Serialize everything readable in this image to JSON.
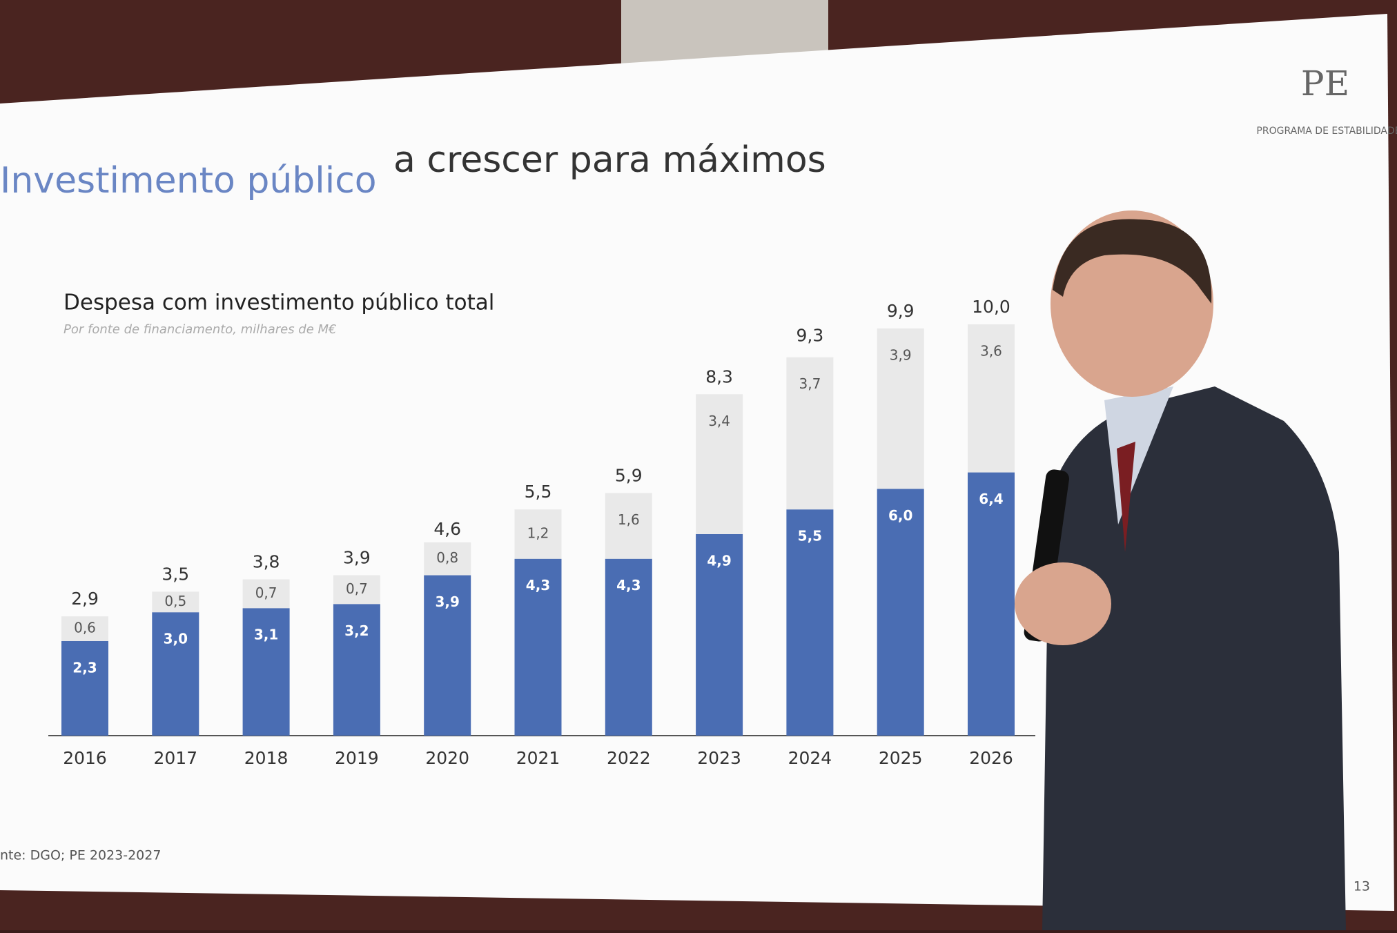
{
  "slide": {
    "title_lead": "Investimento público",
    "title_rest": "a crescer para máximos",
    "logo": "PE",
    "logo_caption": "PROGRAMA DE ESTABILIDADE",
    "source": "nte: DGO; PE 2023-2027",
    "page_number": "13"
  },
  "chart_data": {
    "type": "stacked-bar",
    "title": "Despesa com investimento público total",
    "subtitle": "Por fonte de financiamento, milhares de M€",
    "categories": [
      "2016",
      "2017",
      "2018",
      "2019",
      "2020",
      "2021",
      "2022",
      "2023",
      "2024",
      "2025",
      "2026"
    ],
    "series": [
      {
        "color": "#4a6db3",
        "values": [
          2.3,
          3.0,
          3.1,
          3.2,
          3.9,
          4.3,
          4.3,
          4.9,
          5.5,
          6.0,
          6.4
        ],
        "value_labels": [
          "2,3",
          "3,0",
          "3,1",
          "3,2",
          "3,9",
          "4,3",
          "4,3",
          "4,9",
          "5,5",
          "6,0",
          "6,4"
        ]
      },
      {
        "color": "#e9e9e9",
        "values": [
          0.6,
          0.5,
          0.7,
          0.7,
          0.8,
          1.2,
          1.6,
          3.4,
          3.7,
          3.9,
          3.6
        ],
        "value_labels": [
          "0,6",
          "0,5",
          "0,7",
          "0,7",
          "0,8",
          "1,2",
          "1,6",
          "3,4",
          "3,7",
          "3,9",
          "3,6"
        ]
      }
    ],
    "totals": [
      2.9,
      3.5,
      3.8,
      3.9,
      4.6,
      5.5,
      5.9,
      8.3,
      9.3,
      9.9,
      10.0
    ],
    "total_labels": [
      "2,9",
      "3,5",
      "3,8",
      "3,9",
      "4,6",
      "5,5",
      "5,9",
      "8,3",
      "9,3",
      "9,9",
      "10,0"
    ]
  }
}
